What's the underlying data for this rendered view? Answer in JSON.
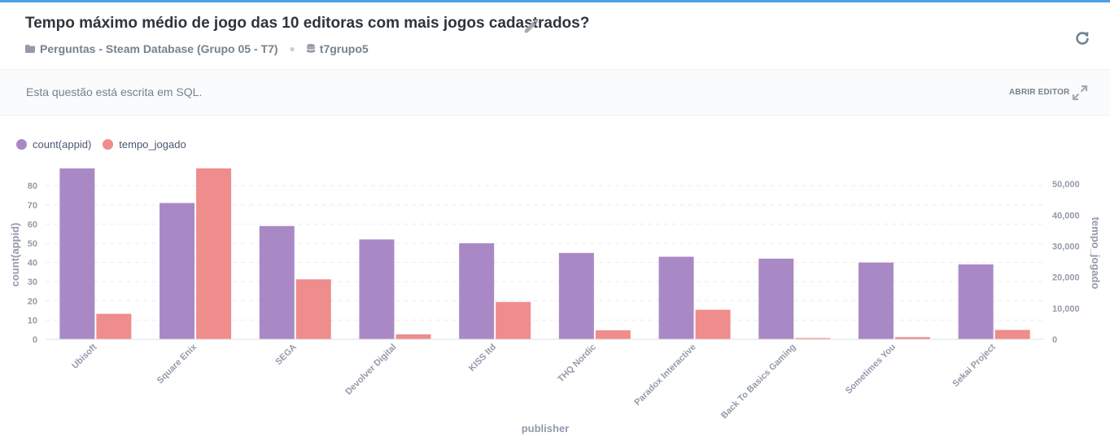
{
  "header": {
    "title": "Tempo máximo médio de jogo das 10 editoras com mais jogos cadastrados?",
    "collection": "Perguntas - Steam Database (Grupo 05 - T7)",
    "database": "t7grupo5"
  },
  "sql_bar": {
    "message": "Esta questão está escrita em SQL.",
    "open_editor": "ABRIR EDITOR"
  },
  "colors": {
    "accent": "#509ee3",
    "series1": "#a989c5",
    "series2": "#ef8c8c"
  },
  "chart_data": {
    "type": "bar",
    "xlabel": "publisher",
    "categories": [
      "Ubisoft",
      "Square Enix",
      "SEGA",
      "Devolver Digital",
      "KISS ltd",
      "THQ Nordic",
      "Paradox Interactive",
      "Back To Basics Gaming",
      "Sometimes You",
      "Sekai Project"
    ],
    "series": [
      {
        "name": "count(appid)",
        "axis": "left",
        "color": "#a989c5",
        "values": [
          89,
          71,
          59,
          52,
          50,
          45,
          43,
          42,
          40,
          39
        ]
      },
      {
        "name": "tempo_jogado",
        "axis": "right",
        "color": "#ef8c8c",
        "values": [
          8200,
          55000,
          19300,
          1600,
          12000,
          2900,
          9500,
          400,
          700,
          3000
        ]
      }
    ],
    "y_left": {
      "label": "count(appid)",
      "ticks": [
        0,
        10,
        20,
        30,
        40,
        50,
        60,
        70,
        80
      ],
      "ylim": [
        0,
        89
      ]
    },
    "y_right": {
      "label": "tempo_jogado",
      "ticks": [
        "0",
        "10,000",
        "20,000",
        "30,000",
        "40,000",
        "50,000"
      ],
      "tick_values": [
        0,
        10000,
        20000,
        30000,
        40000,
        50000
      ],
      "ylim": [
        0,
        55000
      ]
    },
    "legend_position": "top-left",
    "grid": true
  }
}
